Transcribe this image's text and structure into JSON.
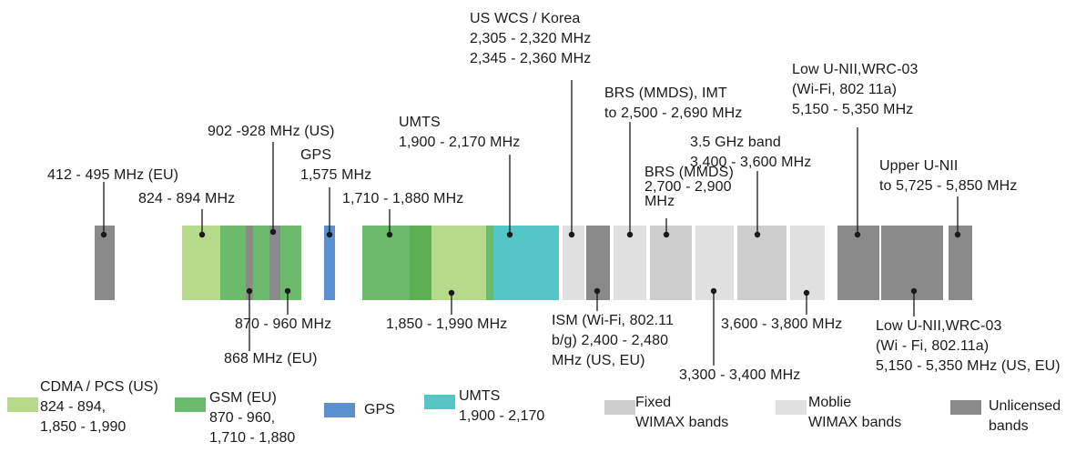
{
  "colors": {
    "cdma_pcs": "#b5da8a",
    "gsm": "#6cbb6c",
    "gsm_dark": "#5cb052",
    "gps": "#5b8fd0",
    "umts": "#54c6c6",
    "fixed_wimax": "#cdcdcd",
    "mobile_wimax": "#e0e0e0",
    "unlicensed": "#8a8a8a",
    "marker": "#1a1a1a"
  },
  "labels": {
    "l412": [
      "412 - 495 MHz (EU)"
    ],
    "l824": [
      "824 - 894 MHz"
    ],
    "l902": [
      "902 -928 MHz (US)"
    ],
    "lgps": [
      "GPS",
      "1,575 MHz"
    ],
    "l1710": [
      "1,710 - 1,880 MHz"
    ],
    "lumts": [
      "UMTS",
      "1,900 - 2,170 MHz"
    ],
    "lwcs": [
      "US WCS / Korea",
      "2,305 - 2,320 MHz",
      "2,345 - 2,360 MHz"
    ],
    "lbrs": [
      "BRS (MMDS), IMT",
      "to 2,500 - 2,690 MHz"
    ],
    "lbrs2": [
      "BRS (MMDS)",
      "2,700 - 2,900",
      "MHz"
    ],
    "l35": [
      "3.5 GHz band",
      "3,400 - 3,600 MHz"
    ],
    "llow": [
      "Low U-NII,WRC-03",
      "(Wi-Fi, 802 11a)",
      "5,150 - 5,350 MHz"
    ],
    "lupper": [
      "Upper U-NII",
      "to 5,725 - 5,850 MHz"
    ],
    "l868": [
      "868 MHz (EU)"
    ],
    "l870": [
      "870 - 960 MHz"
    ],
    "l1850": [
      "1,850 - 1,990 MHz"
    ],
    "lism": [
      "ISM (Wi-Fi, 802.11",
      "b/g) 2,400 - 2,480",
      "MHz (US, EU)"
    ],
    "l3300": [
      "3,300 - 3,400 MHz"
    ],
    "l3600": [
      "3,600 - 3,800 MHz"
    ],
    "llow2": [
      "Low U-NII,WRC-03",
      "(Wi - Fi, 802.11a)",
      "5,150 - 5,350 MHz (US, EU)"
    ]
  },
  "legend": {
    "cdma": [
      "CDMA / PCS (US)",
      "824 - 894,",
      "1,850 - 1,990"
    ],
    "gsm": [
      "GSM (EU)",
      "870 - 960,",
      "1,710 - 1,880"
    ],
    "gps": [
      "GPS"
    ],
    "umts": [
      "UMTS",
      "1,900 - 2,170"
    ],
    "fixed": [
      "Fixed",
      "WIMAX bands"
    ],
    "mobile": [
      "Moblie",
      "WIMAX bands"
    ],
    "unlicensed": [
      "Unlicensed",
      "bands"
    ]
  }
}
